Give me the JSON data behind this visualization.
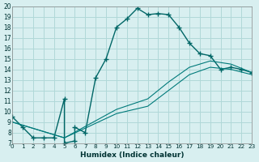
{
  "title": "",
  "xlabel": "Humidex (Indice chaleur)",
  "ylabel": "",
  "bg_color": "#d8eff0",
  "grid_color": "#b0d8d8",
  "line_color": "#006666",
  "line_color2": "#007a7a",
  "xlim": [
    0,
    23
  ],
  "ylim": [
    7,
    20
  ],
  "xticks": [
    0,
    1,
    2,
    3,
    4,
    5,
    6,
    7,
    8,
    9,
    10,
    11,
    12,
    13,
    14,
    15,
    16,
    17,
    18,
    19,
    20,
    21,
    22,
    23
  ],
  "yticks": [
    7,
    8,
    9,
    10,
    11,
    12,
    13,
    14,
    15,
    16,
    17,
    18,
    19,
    20
  ],
  "series1_x": [
    0,
    1,
    2,
    3,
    4,
    5,
    5,
    6,
    6,
    7,
    8,
    9,
    10,
    11,
    12,
    13,
    14,
    15,
    16,
    17,
    18,
    19,
    20,
    21,
    22,
    23
  ],
  "series1_y": [
    9.5,
    8.5,
    7.5,
    7.5,
    7.5,
    11.2,
    7.0,
    7.2,
    8.5,
    8.0,
    13.2,
    15.0,
    18.0,
    18.8,
    19.8,
    19.2,
    19.3,
    19.2,
    18.0,
    16.5,
    15.5,
    15.3,
    14.0,
    14.2,
    14.0,
    13.7
  ],
  "series2_x": [
    0,
    5,
    10,
    13,
    15,
    17,
    19,
    21,
    23
  ],
  "series2_y": [
    9.0,
    7.5,
    9.8,
    10.5,
    12.0,
    13.5,
    14.2,
    14.0,
    13.5
  ],
  "series3_x": [
    0,
    5,
    10,
    13,
    15,
    17,
    19,
    21,
    23
  ],
  "series3_y": [
    9.0,
    7.5,
    10.2,
    11.2,
    12.8,
    14.2,
    14.8,
    14.5,
    13.7
  ]
}
